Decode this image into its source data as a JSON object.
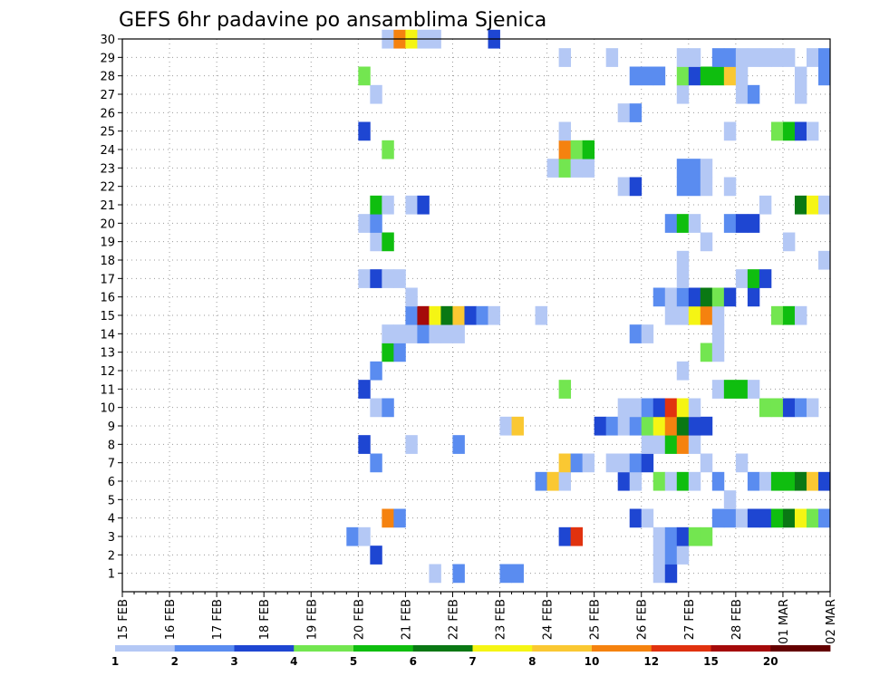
{
  "chart_data": {
    "type": "heatmap",
    "title": "GEFS 6hr padavine po ansamblima Sjenica",
    "xlabel": "",
    "ylabel": "",
    "x_tick_labels": [
      "15 FEB",
      "16 FEB",
      "17 FEB",
      "18 FEB",
      "19 FEB",
      "20 FEB",
      "21 FEB",
      "22 FEB",
      "23 FEB",
      "24 FEB",
      "25 FEB",
      "26 FEB",
      "27 FEB",
      "28 FEB",
      "01 MAR",
      "02 MAR"
    ],
    "y_tick_labels": [
      "1",
      "2",
      "3",
      "4",
      "5",
      "6",
      "7",
      "8",
      "9",
      "10",
      "11",
      "12",
      "13",
      "14",
      "15",
      "16",
      "17",
      "18",
      "19",
      "20",
      "21",
      "22",
      "23",
      "24",
      "25",
      "26",
      "27",
      "28",
      "29",
      "30"
    ],
    "y_range": [
      0,
      30
    ],
    "x_steps_per_day": 4,
    "grid": true,
    "legend_position": "bottom",
    "colorbar": {
      "labels": [
        "1",
        "2",
        "3",
        "4",
        "5",
        "6",
        "7",
        "8",
        "10",
        "12",
        "15",
        "20"
      ],
      "colors": [
        "#b4c8f5",
        "#5a8cf0",
        "#1e46d2",
        "#73e650",
        "#0fbe0f",
        "#0a7814",
        "#f5f514",
        "#fac832",
        "#f5820f",
        "#e1320f",
        "#a50a0a",
        "#640000"
      ]
    },
    "cells": [
      {
        "m": 0,
        "t": 26,
        "c": 0
      },
      {
        "m": 0,
        "t": 28,
        "c": 1
      },
      {
        "m": 0,
        "t": 32,
        "c": 1
      },
      {
        "m": 0,
        "t": 33,
        "c": 1
      },
      {
        "m": 0,
        "t": 45,
        "c": 0
      },
      {
        "m": 0,
        "t": 46,
        "c": 2
      },
      {
        "m": 1,
        "t": 21,
        "c": 2
      },
      {
        "m": 1,
        "t": 45,
        "c": 0
      },
      {
        "m": 1,
        "t": 46,
        "c": 1
      },
      {
        "m": 1,
        "t": 47,
        "c": 0
      },
      {
        "m": 2,
        "t": 19,
        "c": 1
      },
      {
        "m": 2,
        "t": 20,
        "c": 0
      },
      {
        "m": 2,
        "t": 37,
        "c": 2
      },
      {
        "m": 2,
        "t": 38,
        "c": 9
      },
      {
        "m": 2,
        "t": 45,
        "c": 0
      },
      {
        "m": 2,
        "t": 46,
        "c": 1
      },
      {
        "m": 2,
        "t": 47,
        "c": 2
      },
      {
        "m": 2,
        "t": 48,
        "c": 3
      },
      {
        "m": 2,
        "t": 49,
        "c": 3
      },
      {
        "m": 3,
        "t": 22,
        "c": 8
      },
      {
        "m": 3,
        "t": 23,
        "c": 1
      },
      {
        "m": 3,
        "t": 43,
        "c": 2
      },
      {
        "m": 3,
        "t": 44,
        "c": 0
      },
      {
        "m": 3,
        "t": 50,
        "c": 1
      },
      {
        "m": 3,
        "t": 51,
        "c": 1
      },
      {
        "m": 3,
        "t": 52,
        "c": 0
      },
      {
        "m": 3,
        "t": 53,
        "c": 2
      },
      {
        "m": 3,
        "t": 54,
        "c": 2
      },
      {
        "m": 3,
        "t": 55,
        "c": 4
      },
      {
        "m": 3,
        "t": 56,
        "c": 5
      },
      {
        "m": 3,
        "t": 57,
        "c": 6
      },
      {
        "m": 3,
        "t": 58,
        "c": 3
      },
      {
        "m": 3,
        "t": 59,
        "c": 1
      },
      {
        "m": 4,
        "t": 51,
        "c": 0
      },
      {
        "m": 5,
        "t": 35,
        "c": 1
      },
      {
        "m": 5,
        "t": 36,
        "c": 7
      },
      {
        "m": 5,
        "t": 37,
        "c": 0
      },
      {
        "m": 5,
        "t": 42,
        "c": 2
      },
      {
        "m": 5,
        "t": 43,
        "c": 0
      },
      {
        "m": 5,
        "t": 45,
        "c": 3
      },
      {
        "m": 5,
        "t": 46,
        "c": 0
      },
      {
        "m": 5,
        "t": 47,
        "c": 4
      },
      {
        "m": 5,
        "t": 48,
        "c": 0
      },
      {
        "m": 5,
        "t": 50,
        "c": 1
      },
      {
        "m": 5,
        "t": 53,
        "c": 1
      },
      {
        "m": 5,
        "t": 54,
        "c": 0
      },
      {
        "m": 5,
        "t": 55,
        "c": 4
      },
      {
        "m": 5,
        "t": 56,
        "c": 4
      },
      {
        "m": 5,
        "t": 57,
        "c": 5
      },
      {
        "m": 5,
        "t": 58,
        "c": 7
      },
      {
        "m": 5,
        "t": 59,
        "c": 2
      },
      {
        "m": 6,
        "t": 21,
        "c": 1
      },
      {
        "m": 6,
        "t": 37,
        "c": 7
      },
      {
        "m": 6,
        "t": 38,
        "c": 1
      },
      {
        "m": 6,
        "t": 39,
        "c": 0
      },
      {
        "m": 6,
        "t": 41,
        "c": 0
      },
      {
        "m": 6,
        "t": 42,
        "c": 0
      },
      {
        "m": 6,
        "t": 43,
        "c": 1
      },
      {
        "m": 6,
        "t": 44,
        "c": 2
      },
      {
        "m": 6,
        "t": 49,
        "c": 0
      },
      {
        "m": 6,
        "t": 52,
        "c": 0
      },
      {
        "m": 7,
        "t": 20,
        "c": 2
      },
      {
        "m": 7,
        "t": 24,
        "c": 0
      },
      {
        "m": 7,
        "t": 28,
        "c": 1
      },
      {
        "m": 7,
        "t": 44,
        "c": 0
      },
      {
        "m": 7,
        "t": 45,
        "c": 0
      },
      {
        "m": 7,
        "t": 46,
        "c": 4
      },
      {
        "m": 7,
        "t": 47,
        "c": 8
      },
      {
        "m": 7,
        "t": 48,
        "c": 0
      },
      {
        "m": 8,
        "t": 32,
        "c": 0
      },
      {
        "m": 8,
        "t": 33,
        "c": 7
      },
      {
        "m": 8,
        "t": 40,
        "c": 2
      },
      {
        "m": 8,
        "t": 41,
        "c": 1
      },
      {
        "m": 8,
        "t": 42,
        "c": 0
      },
      {
        "m": 8,
        "t": 43,
        "c": 1
      },
      {
        "m": 8,
        "t": 44,
        "c": 3
      },
      {
        "m": 8,
        "t": 45,
        "c": 6
      },
      {
        "m": 8,
        "t": 46,
        "c": 8
      },
      {
        "m": 8,
        "t": 47,
        "c": 5
      },
      {
        "m": 8,
        "t": 48,
        "c": 2
      },
      {
        "m": 8,
        "t": 49,
        "c": 2
      },
      {
        "m": 9,
        "t": 21,
        "c": 0
      },
      {
        "m": 9,
        "t": 22,
        "c": 1
      },
      {
        "m": 9,
        "t": 42,
        "c": 0
      },
      {
        "m": 9,
        "t": 43,
        "c": 0
      },
      {
        "m": 9,
        "t": 44,
        "c": 1
      },
      {
        "m": 9,
        "t": 45,
        "c": 2
      },
      {
        "m": 9,
        "t": 46,
        "c": 9
      },
      {
        "m": 9,
        "t": 47,
        "c": 6
      },
      {
        "m": 9,
        "t": 48,
        "c": 0
      },
      {
        "m": 9,
        "t": 54,
        "c": 3
      },
      {
        "m": 9,
        "t": 55,
        "c": 3
      },
      {
        "m": 9,
        "t": 56,
        "c": 2
      },
      {
        "m": 9,
        "t": 57,
        "c": 1
      },
      {
        "m": 9,
        "t": 58,
        "c": 0
      },
      {
        "m": 10,
        "t": 20,
        "c": 2
      },
      {
        "m": 10,
        "t": 37,
        "c": 3
      },
      {
        "m": 10,
        "t": 50,
        "c": 0
      },
      {
        "m": 10,
        "t": 51,
        "c": 4
      },
      {
        "m": 10,
        "t": 52,
        "c": 4
      },
      {
        "m": 10,
        "t": 53,
        "c": 0
      },
      {
        "m": 11,
        "t": 21,
        "c": 1
      },
      {
        "m": 11,
        "t": 47,
        "c": 0
      },
      {
        "m": 12,
        "t": 22,
        "c": 4
      },
      {
        "m": 12,
        "t": 23,
        "c": 1
      },
      {
        "m": 12,
        "t": 49,
        "c": 3
      },
      {
        "m": 12,
        "t": 50,
        "c": 0
      },
      {
        "m": 13,
        "t": 22,
        "c": 0
      },
      {
        "m": 13,
        "t": 23,
        "c": 0
      },
      {
        "m": 13,
        "t": 24,
        "c": 0
      },
      {
        "m": 13,
        "t": 25,
        "c": 1
      },
      {
        "m": 13,
        "t": 26,
        "c": 0
      },
      {
        "m": 13,
        "t": 27,
        "c": 0
      },
      {
        "m": 13,
        "t": 28,
        "c": 0
      },
      {
        "m": 13,
        "t": 43,
        "c": 1
      },
      {
        "m": 13,
        "t": 44,
        "c": 0
      },
      {
        "m": 13,
        "t": 50,
        "c": 0
      },
      {
        "m": 14,
        "t": 24,
        "c": 1
      },
      {
        "m": 14,
        "t": 25,
        "c": 10
      },
      {
        "m": 14,
        "t": 26,
        "c": 6
      },
      {
        "m": 14,
        "t": 27,
        "c": 5
      },
      {
        "m": 14,
        "t": 28,
        "c": 7
      },
      {
        "m": 14,
        "t": 29,
        "c": 2
      },
      {
        "m": 14,
        "t": 30,
        "c": 1
      },
      {
        "m": 14,
        "t": 31,
        "c": 0
      },
      {
        "m": 14,
        "t": 35,
        "c": 0
      },
      {
        "m": 14,
        "t": 46,
        "c": 0
      },
      {
        "m": 14,
        "t": 47,
        "c": 0
      },
      {
        "m": 14,
        "t": 48,
        "c": 6
      },
      {
        "m": 14,
        "t": 49,
        "c": 8
      },
      {
        "m": 14,
        "t": 50,
        "c": 0
      },
      {
        "m": 14,
        "t": 55,
        "c": 3
      },
      {
        "m": 14,
        "t": 56,
        "c": 4
      },
      {
        "m": 14,
        "t": 57,
        "c": 0
      },
      {
        "m": 15,
        "t": 24,
        "c": 0
      },
      {
        "m": 15,
        "t": 45,
        "c": 1
      },
      {
        "m": 15,
        "t": 46,
        "c": 0
      },
      {
        "m": 15,
        "t": 47,
        "c": 1
      },
      {
        "m": 15,
        "t": 48,
        "c": 2
      },
      {
        "m": 15,
        "t": 49,
        "c": 5
      },
      {
        "m": 15,
        "t": 50,
        "c": 3
      },
      {
        "m": 15,
        "t": 51,
        "c": 2
      },
      {
        "m": 15,
        "t": 53,
        "c": 2
      },
      {
        "m": 16,
        "t": 20,
        "c": 0
      },
      {
        "m": 16,
        "t": 21,
        "c": 2
      },
      {
        "m": 16,
        "t": 22,
        "c": 0
      },
      {
        "m": 16,
        "t": 23,
        "c": 0
      },
      {
        "m": 16,
        "t": 47,
        "c": 0
      },
      {
        "m": 16,
        "t": 52,
        "c": 0
      },
      {
        "m": 16,
        "t": 53,
        "c": 4
      },
      {
        "m": 16,
        "t": 54,
        "c": 2
      },
      {
        "m": 17,
        "t": 47,
        "c": 0
      },
      {
        "m": 17,
        "t": 59,
        "c": 0
      },
      {
        "m": 18,
        "t": 21,
        "c": 0
      },
      {
        "m": 18,
        "t": 22,
        "c": 4
      },
      {
        "m": 18,
        "t": 49,
        "c": 0
      },
      {
        "m": 18,
        "t": 56,
        "c": 0
      },
      {
        "m": 19,
        "t": 20,
        "c": 0
      },
      {
        "m": 19,
        "t": 21,
        "c": 1
      },
      {
        "m": 19,
        "t": 46,
        "c": 1
      },
      {
        "m": 19,
        "t": 47,
        "c": 4
      },
      {
        "m": 19,
        "t": 48,
        "c": 0
      },
      {
        "m": 19,
        "t": 51,
        "c": 1
      },
      {
        "m": 19,
        "t": 52,
        "c": 2
      },
      {
        "m": 19,
        "t": 53,
        "c": 2
      },
      {
        "m": 20,
        "t": 21,
        "c": 4
      },
      {
        "m": 20,
        "t": 22,
        "c": 0
      },
      {
        "m": 20,
        "t": 24,
        "c": 0
      },
      {
        "m": 20,
        "t": 25,
        "c": 2
      },
      {
        "m": 20,
        "t": 54,
        "c": 0
      },
      {
        "m": 20,
        "t": 57,
        "c": 5
      },
      {
        "m": 20,
        "t": 58,
        "c": 6
      },
      {
        "m": 20,
        "t": 59,
        "c": 0
      },
      {
        "m": 21,
        "t": 42,
        "c": 0
      },
      {
        "m": 21,
        "t": 43,
        "c": 2
      },
      {
        "m": 21,
        "t": 47,
        "c": 1
      },
      {
        "m": 21,
        "t": 48,
        "c": 1
      },
      {
        "m": 21,
        "t": 49,
        "c": 0
      },
      {
        "m": 21,
        "t": 51,
        "c": 0
      },
      {
        "m": 22,
        "t": 36,
        "c": 0
      },
      {
        "m": 22,
        "t": 37,
        "c": 3
      },
      {
        "m": 22,
        "t": 38,
        "c": 0
      },
      {
        "m": 22,
        "t": 39,
        "c": 0
      },
      {
        "m": 22,
        "t": 47,
        "c": 1
      },
      {
        "m": 22,
        "t": 48,
        "c": 1
      },
      {
        "m": 22,
        "t": 49,
        "c": 0
      },
      {
        "m": 23,
        "t": 22,
        "c": 3
      },
      {
        "m": 23,
        "t": 37,
        "c": 8
      },
      {
        "m": 23,
        "t": 38,
        "c": 3
      },
      {
        "m": 23,
        "t": 39,
        "c": 4
      },
      {
        "m": 24,
        "t": 20,
        "c": 2
      },
      {
        "m": 24,
        "t": 37,
        "c": 0
      },
      {
        "m": 24,
        "t": 51,
        "c": 0
      },
      {
        "m": 24,
        "t": 55,
        "c": 3
      },
      {
        "m": 24,
        "t": 56,
        "c": 4
      },
      {
        "m": 24,
        "t": 57,
        "c": 2
      },
      {
        "m": 24,
        "t": 58,
        "c": 0
      },
      {
        "m": 25,
        "t": 42,
        "c": 0
      },
      {
        "m": 25,
        "t": 43,
        "c": 1
      },
      {
        "m": 26,
        "t": 21,
        "c": 0
      },
      {
        "m": 26,
        "t": 47,
        "c": 0
      },
      {
        "m": 26,
        "t": 52,
        "c": 0
      },
      {
        "m": 26,
        "t": 53,
        "c": 1
      },
      {
        "m": 26,
        "t": 57,
        "c": 0
      },
      {
        "m": 27,
        "t": 20,
        "c": 3
      },
      {
        "m": 27,
        "t": 43,
        "c": 1
      },
      {
        "m": 27,
        "t": 44,
        "c": 1
      },
      {
        "m": 27,
        "t": 45,
        "c": 1
      },
      {
        "m": 27,
        "t": 47,
        "c": 3
      },
      {
        "m": 27,
        "t": 48,
        "c": 2
      },
      {
        "m": 27,
        "t": 49,
        "c": 4
      },
      {
        "m": 27,
        "t": 50,
        "c": 4
      },
      {
        "m": 27,
        "t": 51,
        "c": 7
      },
      {
        "m": 27,
        "t": 52,
        "c": 0
      },
      {
        "m": 27,
        "t": 57,
        "c": 0
      },
      {
        "m": 27,
        "t": 59,
        "c": 1
      },
      {
        "m": 28,
        "t": 37,
        "c": 0
      },
      {
        "m": 28,
        "t": 41,
        "c": 0
      },
      {
        "m": 28,
        "t": 47,
        "c": 0
      },
      {
        "m": 28,
        "t": 48,
        "c": 0
      },
      {
        "m": 28,
        "t": 50,
        "c": 1
      },
      {
        "m": 28,
        "t": 51,
        "c": 1
      },
      {
        "m": 28,
        "t": 52,
        "c": 0
      },
      {
        "m": 28,
        "t": 53,
        "c": 0
      },
      {
        "m": 28,
        "t": 54,
        "c": 0
      },
      {
        "m": 28,
        "t": 55,
        "c": 0
      },
      {
        "m": 28,
        "t": 56,
        "c": 0
      },
      {
        "m": 28,
        "t": 58,
        "c": 0
      },
      {
        "m": 28,
        "t": 59,
        "c": 1
      },
      {
        "m": 29,
        "t": 22,
        "c": 0
      },
      {
        "m": 29,
        "t": 23,
        "c": 8
      },
      {
        "m": 29,
        "t": 24,
        "c": 6
      },
      {
        "m": 29,
        "t": 25,
        "c": 0
      },
      {
        "m": 29,
        "t": 26,
        "c": 0
      },
      {
        "m": 29,
        "t": 31,
        "c": 2
      }
    ]
  }
}
